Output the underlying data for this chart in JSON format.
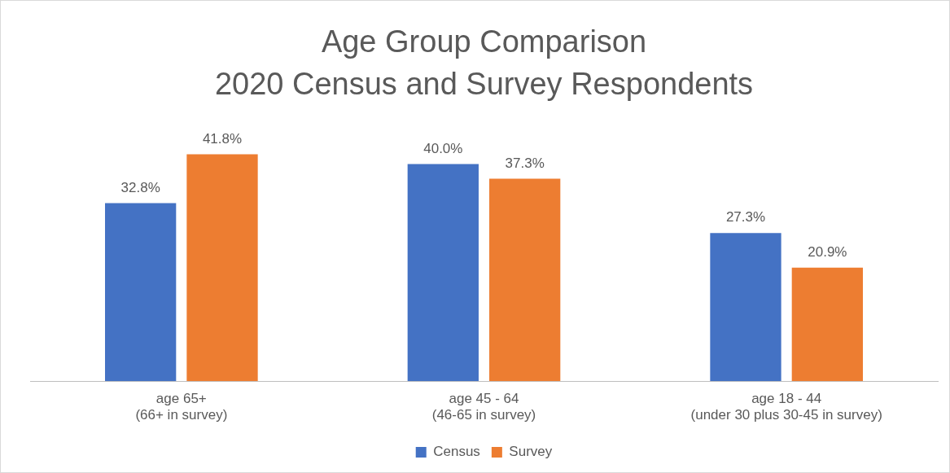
{
  "chart_data": {
    "type": "bar",
    "title": "Age Group Comparison",
    "subtitle": "2020 Census and Survey Respondents",
    "categories": [
      "age 65+\n(66+ in survey)",
      "age 45 - 64\n(46-65 in survey)",
      "age 18 - 44\n(under 30 plus 30-45 in survey)"
    ],
    "series": [
      {
        "name": "Census",
        "color": "#4472c4",
        "values": [
          32.8,
          40.0,
          27.3
        ],
        "value_labels": [
          "32.8%",
          "40.0%",
          "27.3%"
        ]
      },
      {
        "name": "Survey",
        "color": "#ed7d31",
        "values": [
          41.8,
          37.3,
          20.9
        ],
        "value_labels": [
          "41.8%",
          "37.3%",
          "20.9%"
        ]
      }
    ],
    "tick_labels": "x",
    "grid": false,
    "legend": "bottom"
  }
}
